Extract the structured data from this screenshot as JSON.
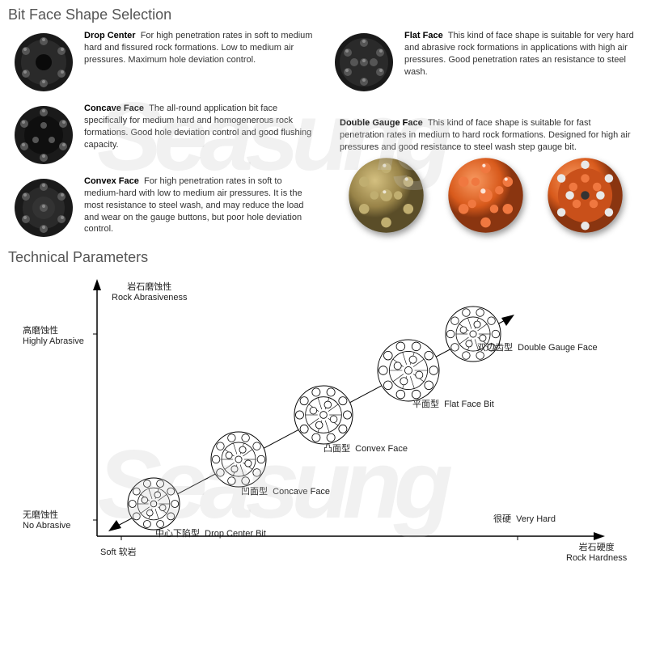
{
  "titles": {
    "selection": "Bit Face Shape Selection",
    "parameters": "Technical Parameters"
  },
  "bits": {
    "dropCenter": {
      "name": "Drop Center",
      "desc": "For high penetration rates in soft to medium hard and fissured rock formations. Low to medium air pressures. Maximum hole deviation control."
    },
    "flatFace": {
      "name": "Flat Face",
      "desc": "This kind of face shape is suitable for very hard and abrasive rock formations in applications with high air pressures. Good penetration rates an resistance to steel wash."
    },
    "concaveFace": {
      "name": "Concave Face",
      "desc": "The all-round application bit face specifically for medium hard and homogenerous rock formations. Good hole deviation control and good flushing capacity."
    },
    "doubleGaugeFace": {
      "name": "Double Gauge Face",
      "desc": "This kind of face shape is suitable for fast penetration rates in medium to hard rock formations. Designed for high air pressures and good resistance to steel wash step gauge bit."
    },
    "convexFace": {
      "name": "Convex Face",
      "desc": "For high penetration rates in soft to medium-hard with low to medium air pressures. It is the most resistance to steel wash, and may reduce the load and wear on the gauge buttons, but poor hole deviation control."
    }
  },
  "chart": {
    "yAxis": {
      "top_cn": "岩石磨蚀性",
      "top_en": "Rock Abrasiveness",
      "high_cn": "高磨蚀性",
      "high_en": "Highly Abrasive",
      "low_cn": "无磨蚀性",
      "low_en": "No Abrasive"
    },
    "xAxis": {
      "right_cn": "岩石硬度",
      "right_en": "Rock Hardness",
      "soft_en": "Soft",
      "soft_cn": "软岩",
      "hard_cn": "很硬",
      "hard_en": "Very Hard"
    },
    "points": [
      {
        "cn": "中心下陷型",
        "en": "Drop Center Bit"
      },
      {
        "cn": "凹面型",
        "en": "Concave Face"
      },
      {
        "cn": "凸面型",
        "en": "Convex Face"
      },
      {
        "cn": "平面型",
        "en": "Flat Face Bit"
      },
      {
        "cn": "双边齿型",
        "en": "Double Gauge Face"
      }
    ],
    "style": {
      "background": "#ffffff",
      "axis_color": "#000000",
      "diagonal_color": "#000000",
      "label_fontsize": 11,
      "line_bit_stroke": "#000000",
      "render_colors": [
        "#988348",
        "#d85a1c",
        "#d85a1c"
      ]
    }
  },
  "watermark": "Seasung"
}
